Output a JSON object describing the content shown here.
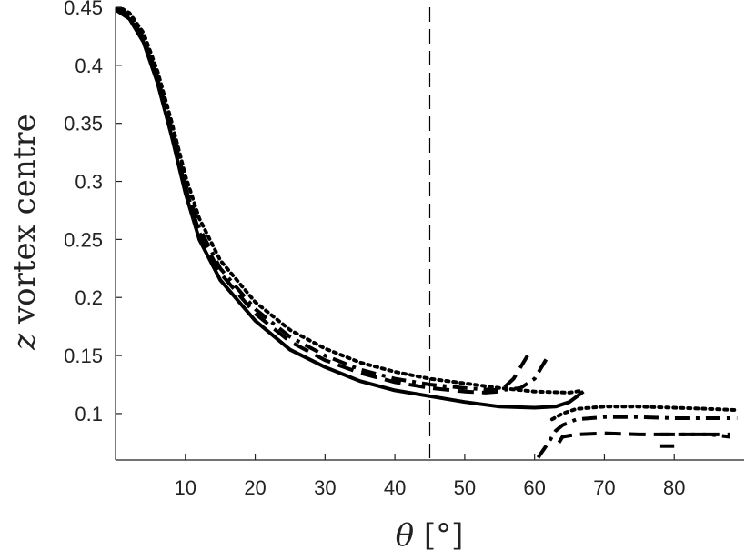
{
  "chart_data": {
    "type": "line",
    "xlabel_symbol": "θ",
    "xlabel_unit": "[°]",
    "ylabel_symbol": "z",
    "ylabel_text": "vortex centre",
    "xlim": [
      0,
      90
    ],
    "ylim": [
      0.06,
      0.45
    ],
    "xticks": [
      10,
      20,
      30,
      40,
      50,
      60,
      70,
      80
    ],
    "yticks": [
      0.1,
      0.15,
      0.2,
      0.25,
      0.3,
      0.35,
      0.4,
      0.45
    ],
    "ytick_labels": [
      "0.1",
      "0.15",
      "0.2",
      "0.25",
      "0.3",
      "0.35",
      "0.4",
      "0.45"
    ],
    "reference_line_x": 45,
    "grid": false,
    "legend": "none",
    "line_color": "#000000",
    "series": [
      {
        "style": "solid",
        "points": [
          [
            0,
            0.448
          ],
          [
            2,
            0.44
          ],
          [
            4,
            0.42
          ],
          [
            6,
            0.385
          ],
          [
            8,
            0.34
          ],
          [
            10,
            0.29
          ],
          [
            12,
            0.25
          ],
          [
            15,
            0.215
          ],
          [
            20,
            0.18
          ],
          [
            25,
            0.155
          ],
          [
            30,
            0.14
          ],
          [
            35,
            0.128
          ],
          [
            40,
            0.12
          ],
          [
            45,
            0.115
          ],
          [
            50,
            0.11
          ],
          [
            55,
            0.106
          ],
          [
            60,
            0.105
          ],
          [
            63,
            0.106
          ],
          [
            65,
            0.11
          ],
          [
            67,
            0.119
          ]
        ]
      },
      {
        "style": "dashed",
        "points": [
          [
            0,
            0.45
          ],
          [
            2,
            0.442
          ],
          [
            4,
            0.422
          ],
          [
            6,
            0.388
          ],
          [
            8,
            0.343
          ],
          [
            10,
            0.295
          ],
          [
            12,
            0.256
          ],
          [
            15,
            0.221
          ],
          [
            20,
            0.186
          ],
          [
            25,
            0.162
          ],
          [
            30,
            0.146
          ],
          [
            35,
            0.135
          ],
          [
            40,
            0.127
          ],
          [
            45,
            0.122
          ],
          [
            50,
            0.119
          ],
          [
            53,
            0.118
          ],
          [
            55,
            0.119
          ],
          [
            57,
            0.13
          ],
          [
            59,
            0.15
          ]
        ]
      },
      {
        "style": "dashed",
        "points": [
          [
            63.5,
            0.075
          ],
          [
            64,
            0.08
          ],
          [
            66,
            0.082
          ],
          [
            70,
            0.083
          ],
          [
            75,
            0.082
          ],
          [
            80,
            0.082
          ],
          [
            85,
            0.082
          ],
          [
            88,
            0.082
          ]
        ]
      },
      {
        "style": "dashed",
        "points": [
          [
            78,
            0.072
          ],
          [
            80,
            0.072
          ]
        ]
      },
      {
        "style": "dashdot",
        "points": [
          [
            0,
            0.45
          ],
          [
            2,
            0.443
          ],
          [
            4,
            0.424
          ],
          [
            6,
            0.39
          ],
          [
            8,
            0.346
          ],
          [
            10,
            0.298
          ],
          [
            12,
            0.26
          ],
          [
            15,
            0.225
          ],
          [
            20,
            0.19
          ],
          [
            25,
            0.166
          ],
          [
            30,
            0.15
          ],
          [
            35,
            0.138
          ],
          [
            40,
            0.13
          ],
          [
            45,
            0.125
          ],
          [
            50,
            0.122
          ],
          [
            55,
            0.12
          ],
          [
            58,
            0.122
          ],
          [
            60,
            0.13
          ],
          [
            62,
            0.15
          ]
        ]
      },
      {
        "style": "dashdot",
        "points": [
          [
            60.5,
            0.062
          ],
          [
            62,
            0.075
          ],
          [
            63,
            0.085
          ],
          [
            64,
            0.09
          ],
          [
            66,
            0.095
          ],
          [
            70,
            0.097
          ],
          [
            75,
            0.097
          ],
          [
            80,
            0.096
          ],
          [
            85,
            0.096
          ],
          [
            89,
            0.096
          ]
        ]
      },
      {
        "style": "dashdot",
        "points": [
          [
            78,
            0.082
          ],
          [
            80,
            0.082
          ],
          [
            85,
            0.082
          ],
          [
            88,
            0.08
          ]
        ]
      },
      {
        "style": "dotted",
        "points": [
          [
            0,
            0.452
          ],
          [
            2,
            0.445
          ],
          [
            4,
            0.428
          ],
          [
            6,
            0.395
          ],
          [
            8,
            0.352
          ],
          [
            10,
            0.305
          ],
          [
            12,
            0.268
          ],
          [
            15,
            0.232
          ],
          [
            20,
            0.196
          ],
          [
            25,
            0.172
          ],
          [
            30,
            0.156
          ],
          [
            35,
            0.144
          ],
          [
            40,
            0.136
          ],
          [
            45,
            0.13
          ],
          [
            50,
            0.126
          ],
          [
            55,
            0.122
          ],
          [
            60,
            0.119
          ],
          [
            65,
            0.118
          ],
          [
            67,
            0.12
          ]
        ]
      },
      {
        "style": "dotted",
        "points": [
          [
            62.5,
            0.095
          ],
          [
            64,
            0.1
          ],
          [
            66,
            0.104
          ],
          [
            70,
            0.106
          ],
          [
            75,
            0.106
          ],
          [
            80,
            0.105
          ],
          [
            85,
            0.104
          ],
          [
            89,
            0.103
          ]
        ]
      }
    ]
  }
}
